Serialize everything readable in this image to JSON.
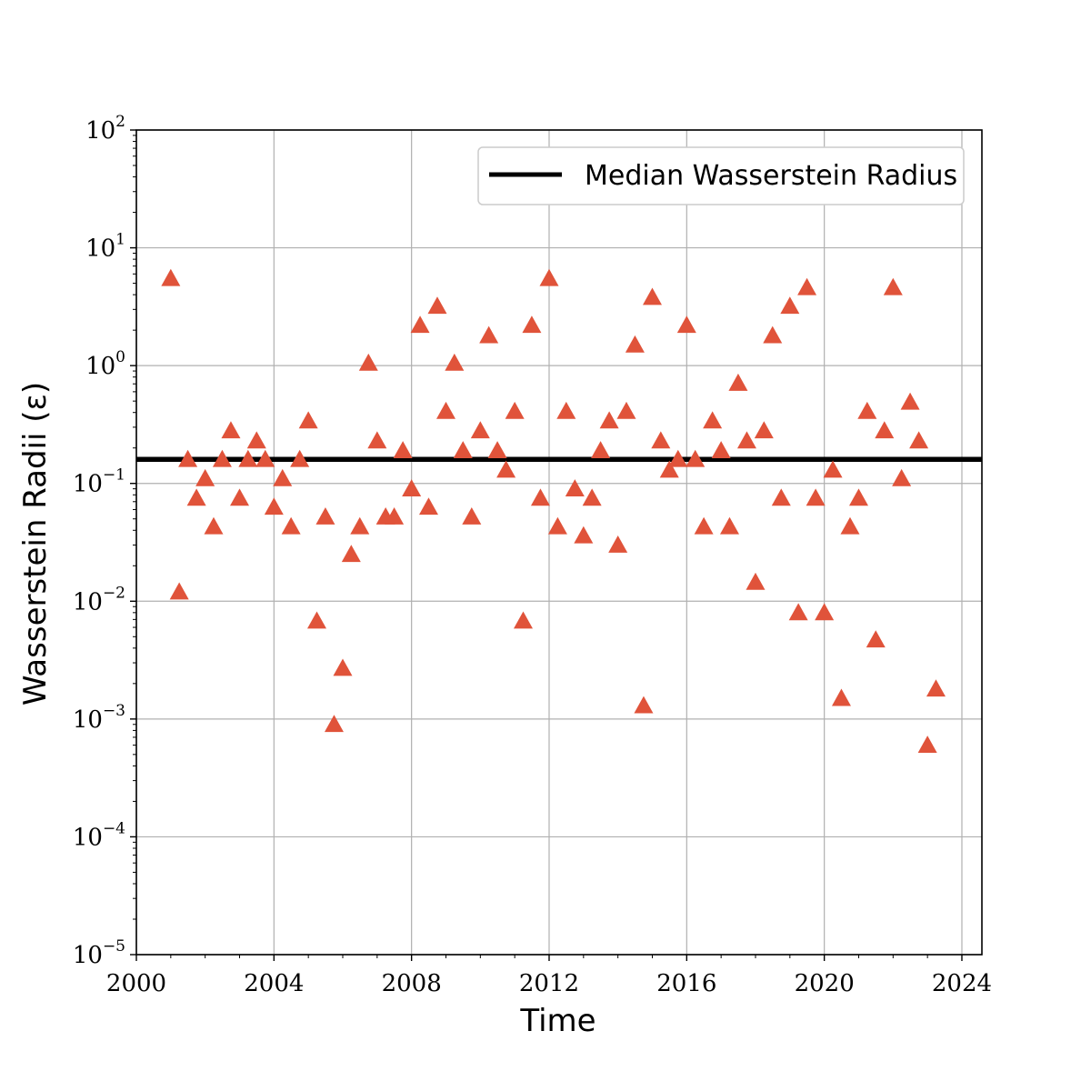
{
  "chart_data": {
    "type": "scatter",
    "xlabel": "Time",
    "ylabel": "Wasserstein Radii (ε)",
    "yscale": "log",
    "xlim": [
      "2000-01-01",
      "2024-08-01"
    ],
    "ylim": [
      1e-05,
      100
    ],
    "x_ticks": [
      "2000",
      "2004",
      "2008",
      "2012",
      "2016",
      "2020",
      "2024"
    ],
    "y_ticks": [
      {
        "value": 1e-05,
        "base": "10",
        "exp": "−5"
      },
      {
        "value": 0.0001,
        "base": "10",
        "exp": "−4"
      },
      {
        "value": 0.001,
        "base": "10",
        "exp": "−3"
      },
      {
        "value": 0.01,
        "base": "10",
        "exp": "−2"
      },
      {
        "value": 0.1,
        "base": "10",
        "exp": "−1"
      },
      {
        "value": 1,
        "base": "10",
        "exp": "0"
      },
      {
        "value": 10,
        "base": "10",
        "exp": "1"
      },
      {
        "value": 100,
        "base": "10",
        "exp": "2"
      }
    ],
    "grid": true,
    "legend_position": "top-right",
    "colors": {
      "points": "#e0533a",
      "median": "#000000",
      "grid": "#b0b0b0"
    },
    "series": [
      {
        "marker": "triangle",
        "points": [
          {
            "x": "2001-01",
            "y": 5.5
          },
          {
            "x": "2001-04",
            "y": 0.012
          },
          {
            "x": "2001-07",
            "y": 0.16
          },
          {
            "x": "2001-10",
            "y": 0.075
          },
          {
            "x": "2002-01",
            "y": 0.11
          },
          {
            "x": "2002-04",
            "y": 0.043
          },
          {
            "x": "2002-07",
            "y": 0.16
          },
          {
            "x": "2002-10",
            "y": 0.28
          },
          {
            "x": "2003-01",
            "y": 0.075
          },
          {
            "x": "2003-04",
            "y": 0.16
          },
          {
            "x": "2003-07",
            "y": 0.23
          },
          {
            "x": "2003-10",
            "y": 0.16
          },
          {
            "x": "2004-01",
            "y": 0.063
          },
          {
            "x": "2004-04",
            "y": 0.11
          },
          {
            "x": "2004-07",
            "y": 0.043
          },
          {
            "x": "2004-10",
            "y": 0.16
          },
          {
            "x": "2005-01",
            "y": 0.34
          },
          {
            "x": "2005-04",
            "y": 0.0068
          },
          {
            "x": "2005-07",
            "y": 0.052
          },
          {
            "x": "2005-10",
            "y": 0.0009
          },
          {
            "x": "2006-01",
            "y": 0.0027
          },
          {
            "x": "2006-04",
            "y": 0.025
          },
          {
            "x": "2006-07",
            "y": 0.043
          },
          {
            "x": "2006-10",
            "y": 1.05
          },
          {
            "x": "2007-01",
            "y": 0.23
          },
          {
            "x": "2007-04",
            "y": 0.052
          },
          {
            "x": "2007-07",
            "y": 0.052
          },
          {
            "x": "2007-10",
            "y": 0.19
          },
          {
            "x": "2008-01",
            "y": 0.09
          },
          {
            "x": "2008-04",
            "y": 2.2
          },
          {
            "x": "2008-07",
            "y": 0.063
          },
          {
            "x": "2008-10",
            "y": 3.2
          },
          {
            "x": "2009-01",
            "y": 0.41
          },
          {
            "x": "2009-04",
            "y": 1.05
          },
          {
            "x": "2009-07",
            "y": 0.19
          },
          {
            "x": "2009-10",
            "y": 0.052
          },
          {
            "x": "2010-01",
            "y": 0.28
          },
          {
            "x": "2010-04",
            "y": 1.8
          },
          {
            "x": "2010-07",
            "y": 0.19
          },
          {
            "x": "2010-10",
            "y": 0.13
          },
          {
            "x": "2011-01",
            "y": 0.41
          },
          {
            "x": "2011-04",
            "y": 0.0068
          },
          {
            "x": "2011-07",
            "y": 2.2
          },
          {
            "x": "2011-10",
            "y": 0.075
          },
          {
            "x": "2012-01",
            "y": 5.5
          },
          {
            "x": "2012-04",
            "y": 0.043
          },
          {
            "x": "2012-07",
            "y": 0.41
          },
          {
            "x": "2012-10",
            "y": 0.09
          },
          {
            "x": "2013-01",
            "y": 0.036
          },
          {
            "x": "2013-04",
            "y": 0.075
          },
          {
            "x": "2013-07",
            "y": 0.19
          },
          {
            "x": "2013-10",
            "y": 0.34
          },
          {
            "x": "2014-01",
            "y": 0.03
          },
          {
            "x": "2014-04",
            "y": 0.41
          },
          {
            "x": "2014-07",
            "y": 1.5
          },
          {
            "x": "2014-10",
            "y": 0.0013
          },
          {
            "x": "2015-01",
            "y": 3.8
          },
          {
            "x": "2015-04",
            "y": 0.23
          },
          {
            "x": "2015-07",
            "y": 0.13
          },
          {
            "x": "2015-10",
            "y": 0.16
          },
          {
            "x": "2016-01",
            "y": 2.2
          },
          {
            "x": "2016-04",
            "y": 0.16
          },
          {
            "x": "2016-07",
            "y": 0.043
          },
          {
            "x": "2016-10",
            "y": 0.34
          },
          {
            "x": "2017-01",
            "y": 0.19
          },
          {
            "x": "2017-04",
            "y": 0.043
          },
          {
            "x": "2017-07",
            "y": 0.71
          },
          {
            "x": "2017-10",
            "y": 0.23
          },
          {
            "x": "2018-01",
            "y": 0.0145
          },
          {
            "x": "2018-04",
            "y": 0.28
          },
          {
            "x": "2018-07",
            "y": 1.8
          },
          {
            "x": "2018-10",
            "y": 0.075
          },
          {
            "x": "2019-01",
            "y": 3.2
          },
          {
            "x": "2019-04",
            "y": 0.008
          },
          {
            "x": "2019-07",
            "y": 4.6
          },
          {
            "x": "2019-10",
            "y": 0.075
          },
          {
            "x": "2020-01",
            "y": 0.008
          },
          {
            "x": "2020-04",
            "y": 0.13
          },
          {
            "x": "2020-07",
            "y": 0.0015
          },
          {
            "x": "2020-10",
            "y": 0.043
          },
          {
            "x": "2021-01",
            "y": 0.075
          },
          {
            "x": "2021-04",
            "y": 0.41
          },
          {
            "x": "2021-07",
            "y": 0.0047
          },
          {
            "x": "2021-10",
            "y": 0.28
          },
          {
            "x": "2022-01",
            "y": 4.6
          },
          {
            "x": "2022-04",
            "y": 0.11
          },
          {
            "x": "2022-07",
            "y": 0.49
          },
          {
            "x": "2022-10",
            "y": 0.23
          },
          {
            "x": "2023-01",
            "y": 0.0006
          },
          {
            "x": "2023-04",
            "y": 0.0018
          }
        ]
      },
      {
        "name": "Median Wasserstein Radius",
        "type": "hline",
        "value": 0.16
      }
    ]
  }
}
